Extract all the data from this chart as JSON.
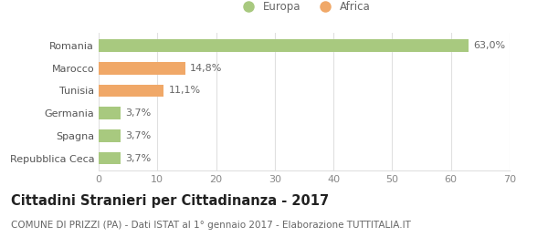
{
  "categories": [
    "Repubblica Ceca",
    "Spagna",
    "Germania",
    "Tunisia",
    "Marocco",
    "Romania"
  ],
  "values": [
    3.7,
    3.7,
    3.7,
    11.1,
    14.8,
    63.0
  ],
  "labels": [
    "3,7%",
    "3,7%",
    "3,7%",
    "11,1%",
    "14,8%",
    "63,0%"
  ],
  "colors": [
    "#a8c97f",
    "#a8c97f",
    "#a8c97f",
    "#f0a868",
    "#f0a868",
    "#a8c97f"
  ],
  "legend": [
    {
      "label": "Europa",
      "color": "#a8c97f"
    },
    {
      "label": "Africa",
      "color": "#f0a868"
    }
  ],
  "xlim": [
    0,
    70
  ],
  "xticks": [
    0,
    10,
    20,
    30,
    40,
    50,
    60,
    70
  ],
  "title_bold": "Cittadini Stranieri per Cittadinanza - 2017",
  "subtitle": "COMUNE DI PRIZZI (PA) - Dati ISTAT al 1° gennaio 2017 - Elaborazione TUTTITALIA.IT",
  "background_color": "#ffffff",
  "plot_background": "#ffffff",
  "grid_color": "#e0e0e0",
  "bar_height": 0.55,
  "label_fontsize": 8,
  "tick_fontsize": 8,
  "ytick_fontsize": 8,
  "title_fontsize": 10.5,
  "subtitle_fontsize": 7.5
}
